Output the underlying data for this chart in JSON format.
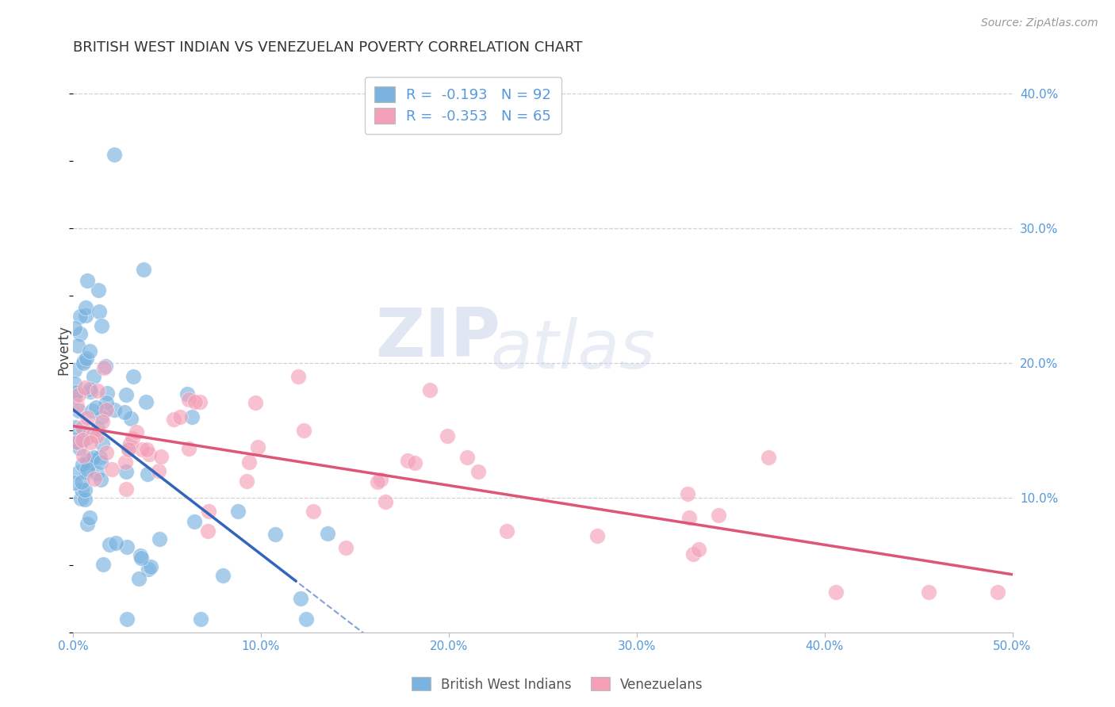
{
  "title": "BRITISH WEST INDIAN VS VENEZUELAN POVERTY CORRELATION CHART",
  "source_text": "Source: ZipAtlas.com",
  "ylabel": "Poverty",
  "xlim": [
    0.0,
    0.5
  ],
  "ylim": [
    0.0,
    0.42
  ],
  "xtick_labels": [
    "0.0%",
    "10.0%",
    "20.0%",
    "30.0%",
    "40.0%",
    "50.0%"
  ],
  "xtick_vals": [
    0.0,
    0.1,
    0.2,
    0.3,
    0.4,
    0.5
  ],
  "ytick_labels_right": [
    "10.0%",
    "20.0%",
    "30.0%",
    "40.0%"
  ],
  "ytick_vals_right": [
    0.1,
    0.2,
    0.3,
    0.4
  ],
  "blue_R": -0.193,
  "blue_N": 92,
  "pink_R": -0.353,
  "pink_N": 65,
  "watermark_zip": "ZIP",
  "watermark_atlas": "atlas",
  "blue_color": "#7ab3e0",
  "pink_color": "#f4a0b8",
  "blue_line_color": "#3366bb",
  "pink_line_color": "#dd5577",
  "grid_color": "#cccccc",
  "title_color": "#333333",
  "axis_label_color": "#5599dd",
  "background_color": "#ffffff"
}
